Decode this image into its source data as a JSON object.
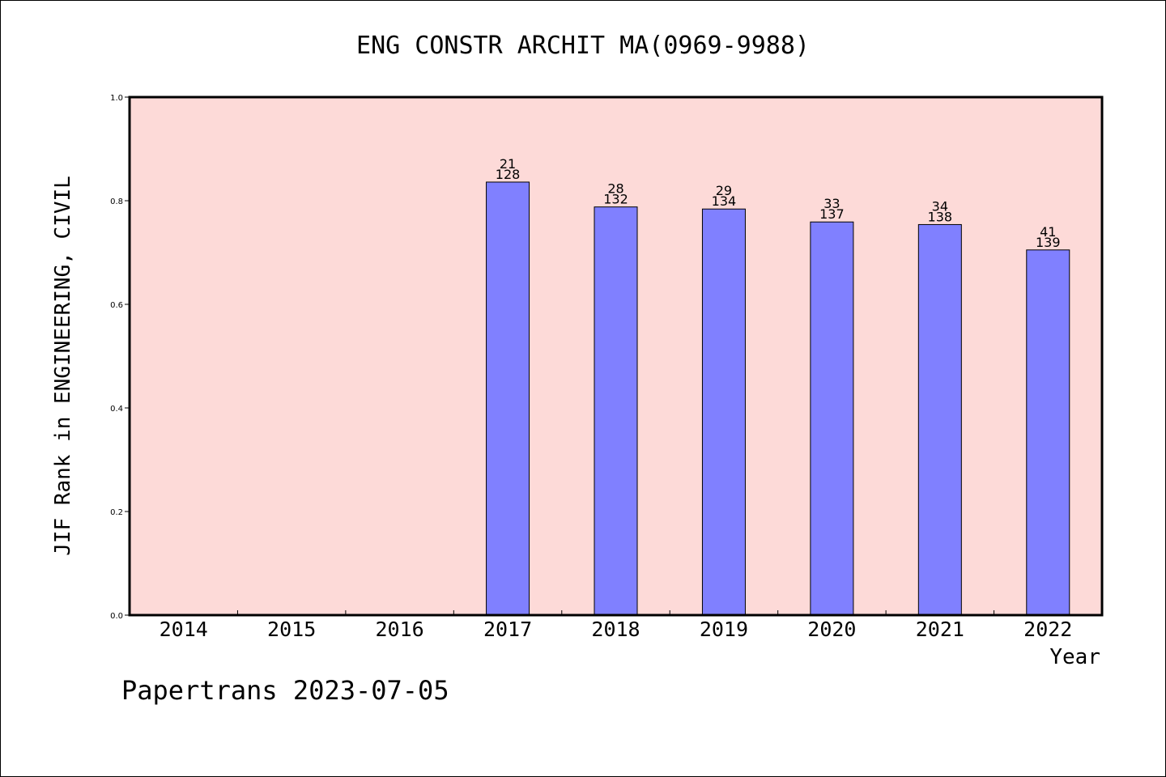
{
  "chart_data": {
    "type": "bar",
    "title": "ENG CONSTR ARCHIT MA(0969-9988)",
    "xlabel": "Year",
    "ylabel": "JIF Rank in ENGINEERING, CIVIL",
    "categories": [
      "2014",
      "2015",
      "2016",
      "2017",
      "2018",
      "2019",
      "2020",
      "2021",
      "2022"
    ],
    "values": [
      null,
      null,
      null,
      0.836,
      0.788,
      0.784,
      0.759,
      0.754,
      0.705
    ],
    "rank": [
      null,
      null,
      null,
      "21",
      "28",
      "29",
      "33",
      "34",
      "41"
    ],
    "total": [
      null,
      null,
      null,
      "128",
      "132",
      "134",
      "137",
      "138",
      "139"
    ],
    "ylim": [
      0,
      1.0
    ],
    "yticks": [
      "0.0",
      "0.2",
      "0.4",
      "0.6",
      "0.8",
      "1.0"
    ],
    "grid": false,
    "legend": "none"
  },
  "footer": {
    "credit": "Papertrans 2023-07-05"
  },
  "colors": {
    "plot_bg": "#fddad8",
    "bar": "#8080ff",
    "axis": "#000000"
  }
}
